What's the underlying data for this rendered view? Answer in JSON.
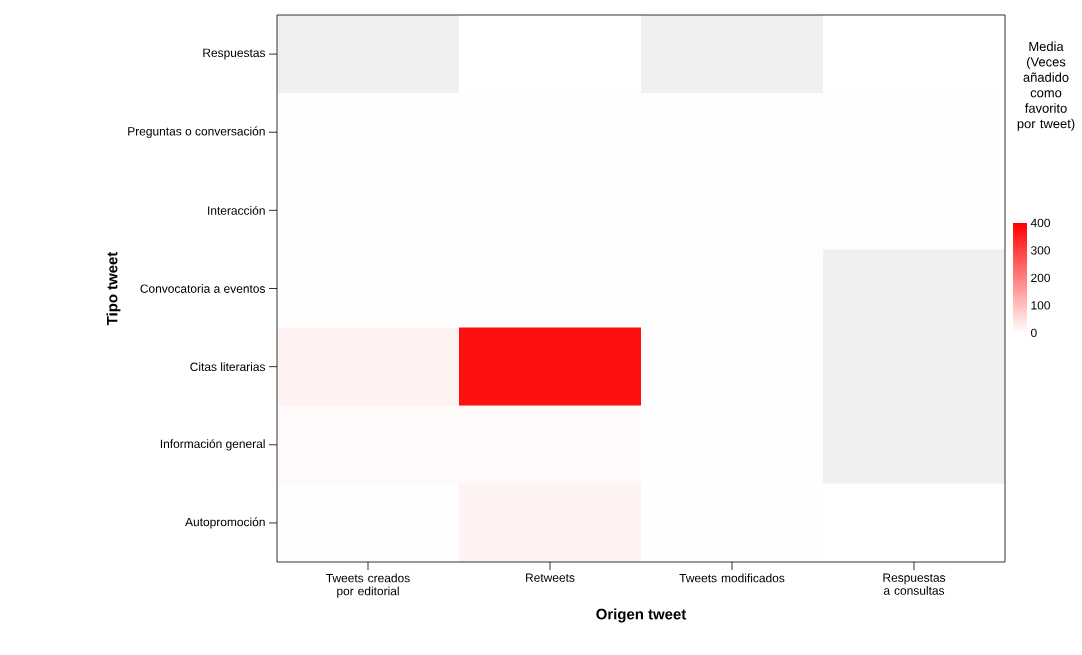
{
  "chart_data": {
    "type": "heatmap",
    "xlabel": "Origen tweet",
    "ylabel": "Tipo tweet",
    "categories": [
      "Tweets creados por editorial",
      "Retweets",
      "Tweets modificados",
      "Respuestas a consultas"
    ],
    "y_categories": [
      "Respuestas",
      "Preguntas o conversación",
      "Interacción",
      "Convocatoria a eventos",
      "Citas literarias",
      "Información general",
      "Autopromoción"
    ],
    "cells": [
      [
        null,
        0,
        null,
        0
      ],
      [
        3,
        3,
        1,
        1
      ],
      [
        1,
        2,
        1,
        1
      ],
      [
        1,
        1,
        1,
        null
      ],
      [
        20,
        375,
        3,
        null
      ],
      [
        8,
        10,
        1,
        null
      ],
      [
        1,
        20,
        1,
        0
      ]
    ],
    "clabel": "Media (Veces añadido como favorito por tweet)",
    "clim": [
      0,
      400
    ],
    "cticks": [
      400,
      300,
      200,
      100,
      0
    ]
  }
}
